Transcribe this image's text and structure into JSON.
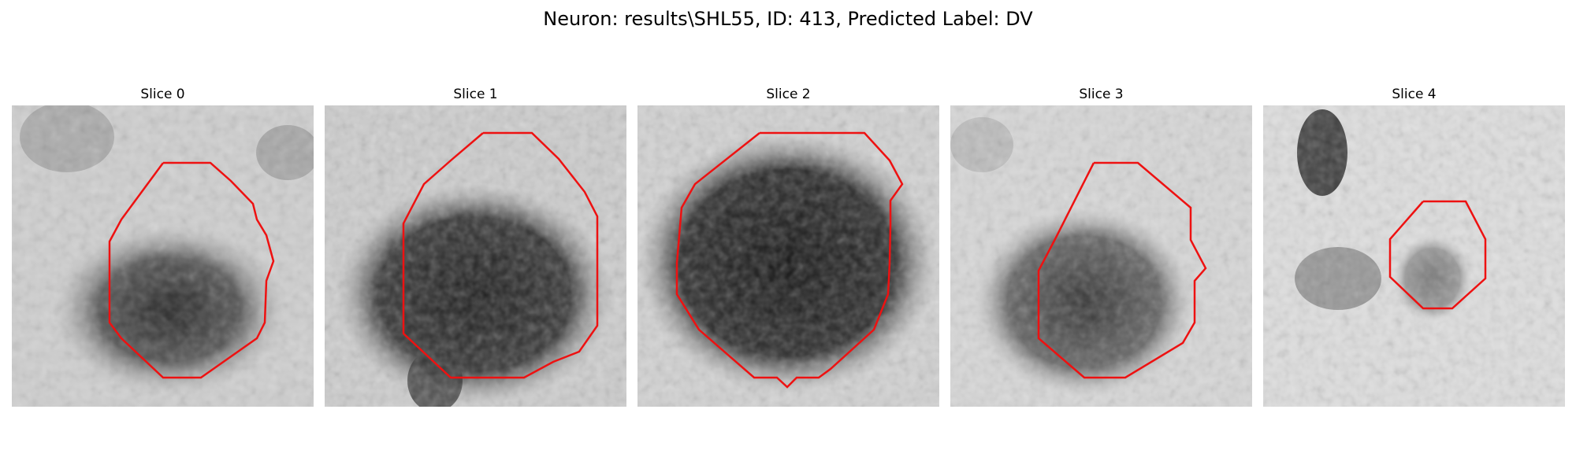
{
  "figure": {
    "title": "Neuron: results\\SHL55, ID: 413, Predicted Label: DV"
  },
  "panels": [
    {
      "title": "Slice 0"
    },
    {
      "title": "Slice 1"
    },
    {
      "title": "Slice 2"
    },
    {
      "title": "Slice 3"
    },
    {
      "title": "Slice 4"
    }
  ],
  "colors": {
    "contour": "#ee1111",
    "background": "#ffffff"
  }
}
